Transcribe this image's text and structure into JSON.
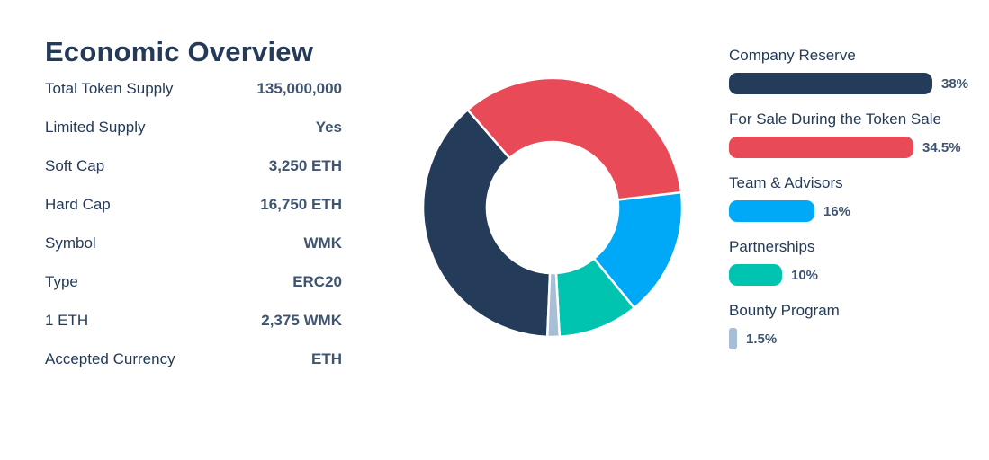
{
  "overview": {
    "title": "Economic Overview",
    "rows": [
      {
        "label": "Total Token Supply",
        "value": "135,000,000"
      },
      {
        "label": "Limited Supply",
        "value": "Yes"
      },
      {
        "label": "Soft Cap",
        "value": "3,250 ETH"
      },
      {
        "label": "Hard Cap",
        "value": "16,750 ETH"
      },
      {
        "label": "Symbol",
        "value": "WMK"
      },
      {
        "label": "Type",
        "value": "ERC20"
      },
      {
        "label": "1 ETH",
        "value": "2,375 WMK"
      },
      {
        "label": "Accepted Currency",
        "value": "ETH"
      }
    ]
  },
  "chart_data": {
    "type": "pie",
    "categories": [
      "Company Reserve",
      "For Sale During the Token Sale",
      "Team & Advisors",
      "Partnerships",
      "Bounty Program"
    ],
    "values": [
      38,
      34.5,
      16,
      10,
      1.5
    ],
    "value_labels": [
      "38%",
      "34.5%",
      "16%",
      "10%",
      "1.5%"
    ],
    "colors": [
      "#243c5a",
      "#e84b57",
      "#00a9f7",
      "#00c4b0",
      "#a8bdd6"
    ],
    "legend_position": "right"
  }
}
